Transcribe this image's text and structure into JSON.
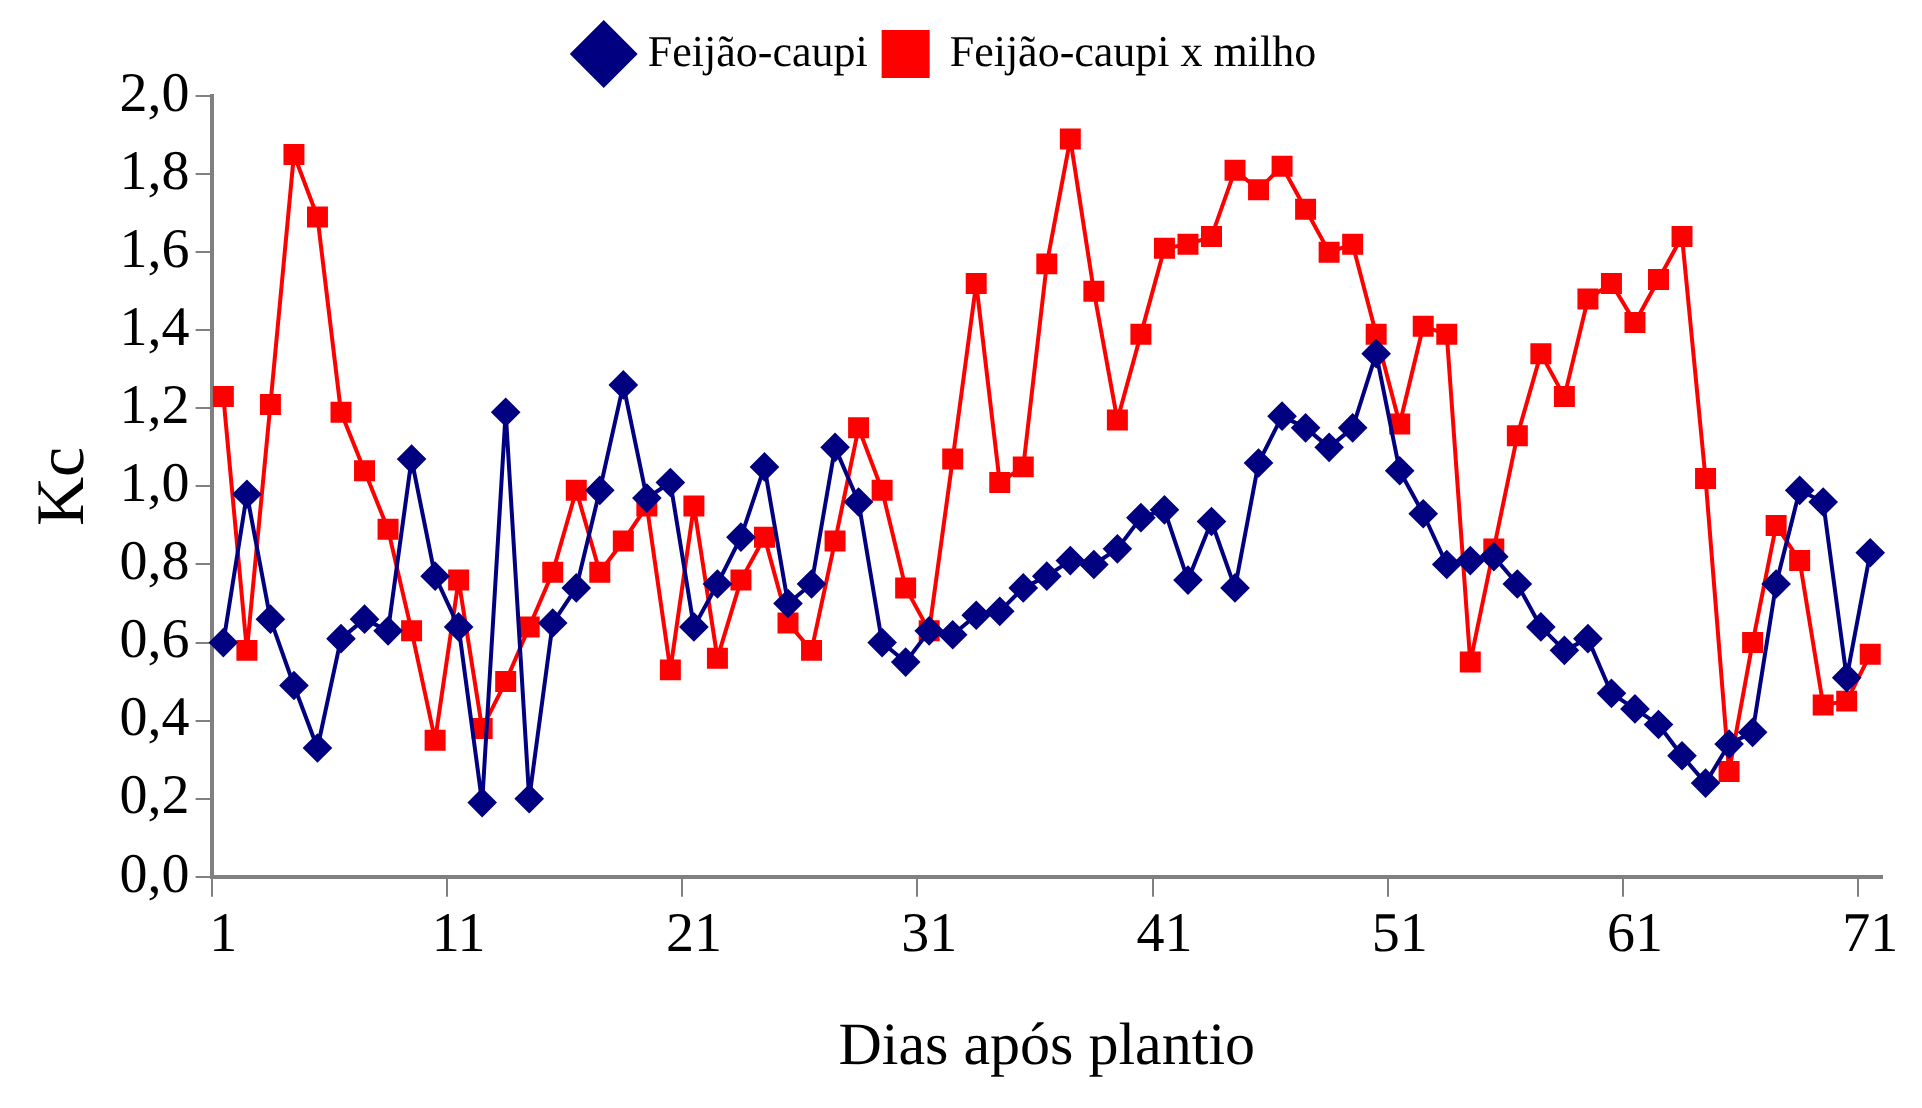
{
  "chart_data": {
    "type": "line",
    "xlabel": "Dias após plantio",
    "ylabel": "Kc",
    "categories": [
      "1",
      null,
      null,
      null,
      null,
      null,
      null,
      null,
      null,
      null,
      "11",
      null,
      null,
      null,
      null,
      null,
      null,
      null,
      null,
      null,
      "21",
      null,
      null,
      null,
      null,
      null,
      null,
      null,
      null,
      null,
      "31",
      null,
      null,
      null,
      null,
      null,
      null,
      null,
      null,
      null,
      "41",
      null,
      null,
      null,
      null,
      null,
      null,
      null,
      null,
      null,
      "51",
      null,
      null,
      null,
      null,
      null,
      null,
      null,
      null,
      null,
      "61",
      null,
      null,
      null,
      null,
      null,
      null,
      null,
      null,
      null,
      "71"
    ],
    "series": [
      {
        "name": "Feijão-caupi",
        "color": "#000080",
        "marker": "diamond",
        "values": [
          0.6,
          0.98,
          0.66,
          0.49,
          0.33,
          0.61,
          0.66,
          0.63,
          1.07,
          0.77,
          0.64,
          0.19,
          1.19,
          0.2,
          0.65,
          0.74,
          0.99,
          1.26,
          0.97,
          1.01,
          0.64,
          0.75,
          0.87,
          1.05,
          0.7,
          0.75,
          1.1,
          0.96,
          0.6,
          0.55,
          0.63,
          0.62,
          0.67,
          0.68,
          0.74,
          0.77,
          0.81,
          0.8,
          0.84,
          0.92,
          0.94,
          0.76,
          0.91,
          0.74,
          1.06,
          1.18,
          1.15,
          1.1,
          1.15,
          1.34,
          1.04,
          0.93,
          0.8,
          0.81,
          0.82,
          0.75,
          0.64,
          0.58,
          0.61,
          0.47,
          0.43,
          0.39,
          0.31,
          0.24,
          0.34,
          0.37,
          0.75,
          0.99,
          0.96,
          0.51,
          0.83
        ]
      },
      {
        "name": "Feijão-caupi x milho",
        "color": "#ff0000",
        "marker": "square",
        "values": [
          1.23,
          0.58,
          1.21,
          1.85,
          1.69,
          1.19,
          1.04,
          0.89,
          0.63,
          0.35,
          0.76,
          0.38,
          0.5,
          0.64,
          0.78,
          0.99,
          0.78,
          0.86,
          0.95,
          0.53,
          0.95,
          0.56,
          0.76,
          0.87,
          0.65,
          0.58,
          0.86,
          1.15,
          0.99,
          0.74,
          0.63,
          1.07,
          1.52,
          1.01,
          1.05,
          1.57,
          1.89,
          1.5,
          1.17,
          1.39,
          1.61,
          1.62,
          1.64,
          1.81,
          1.76,
          1.82,
          1.71,
          1.6,
          1.62,
          1.39,
          1.16,
          1.41,
          1.39,
          0.55,
          0.84,
          1.13,
          1.34,
          1.23,
          1.48,
          1.52,
          1.42,
          1.53,
          1.64,
          1.02,
          0.27,
          0.6,
          0.9,
          0.81,
          0.44,
          0.45,
          0.57
        ]
      }
    ],
    "ylim": [
      0,
      2
    ],
    "yticks": [
      {
        "value": 0,
        "label": "0,0"
      },
      {
        "value": 0.2,
        "label": "0,2"
      },
      {
        "value": 0.4,
        "label": "0,4"
      },
      {
        "value": 0.6,
        "label": "0,6"
      },
      {
        "value": 0.8,
        "label": "0,8"
      },
      {
        "value": 1,
        "label": "1,0"
      },
      {
        "value": 1.2,
        "label": "1,2"
      },
      {
        "value": 1.4,
        "label": "1,4"
      },
      {
        "value": 1.6,
        "label": "1,6"
      },
      {
        "value": 1.8,
        "label": "1,8"
      },
      {
        "value": 2,
        "label": "2,0"
      }
    ],
    "legend": "top",
    "line_style": "solid"
  }
}
